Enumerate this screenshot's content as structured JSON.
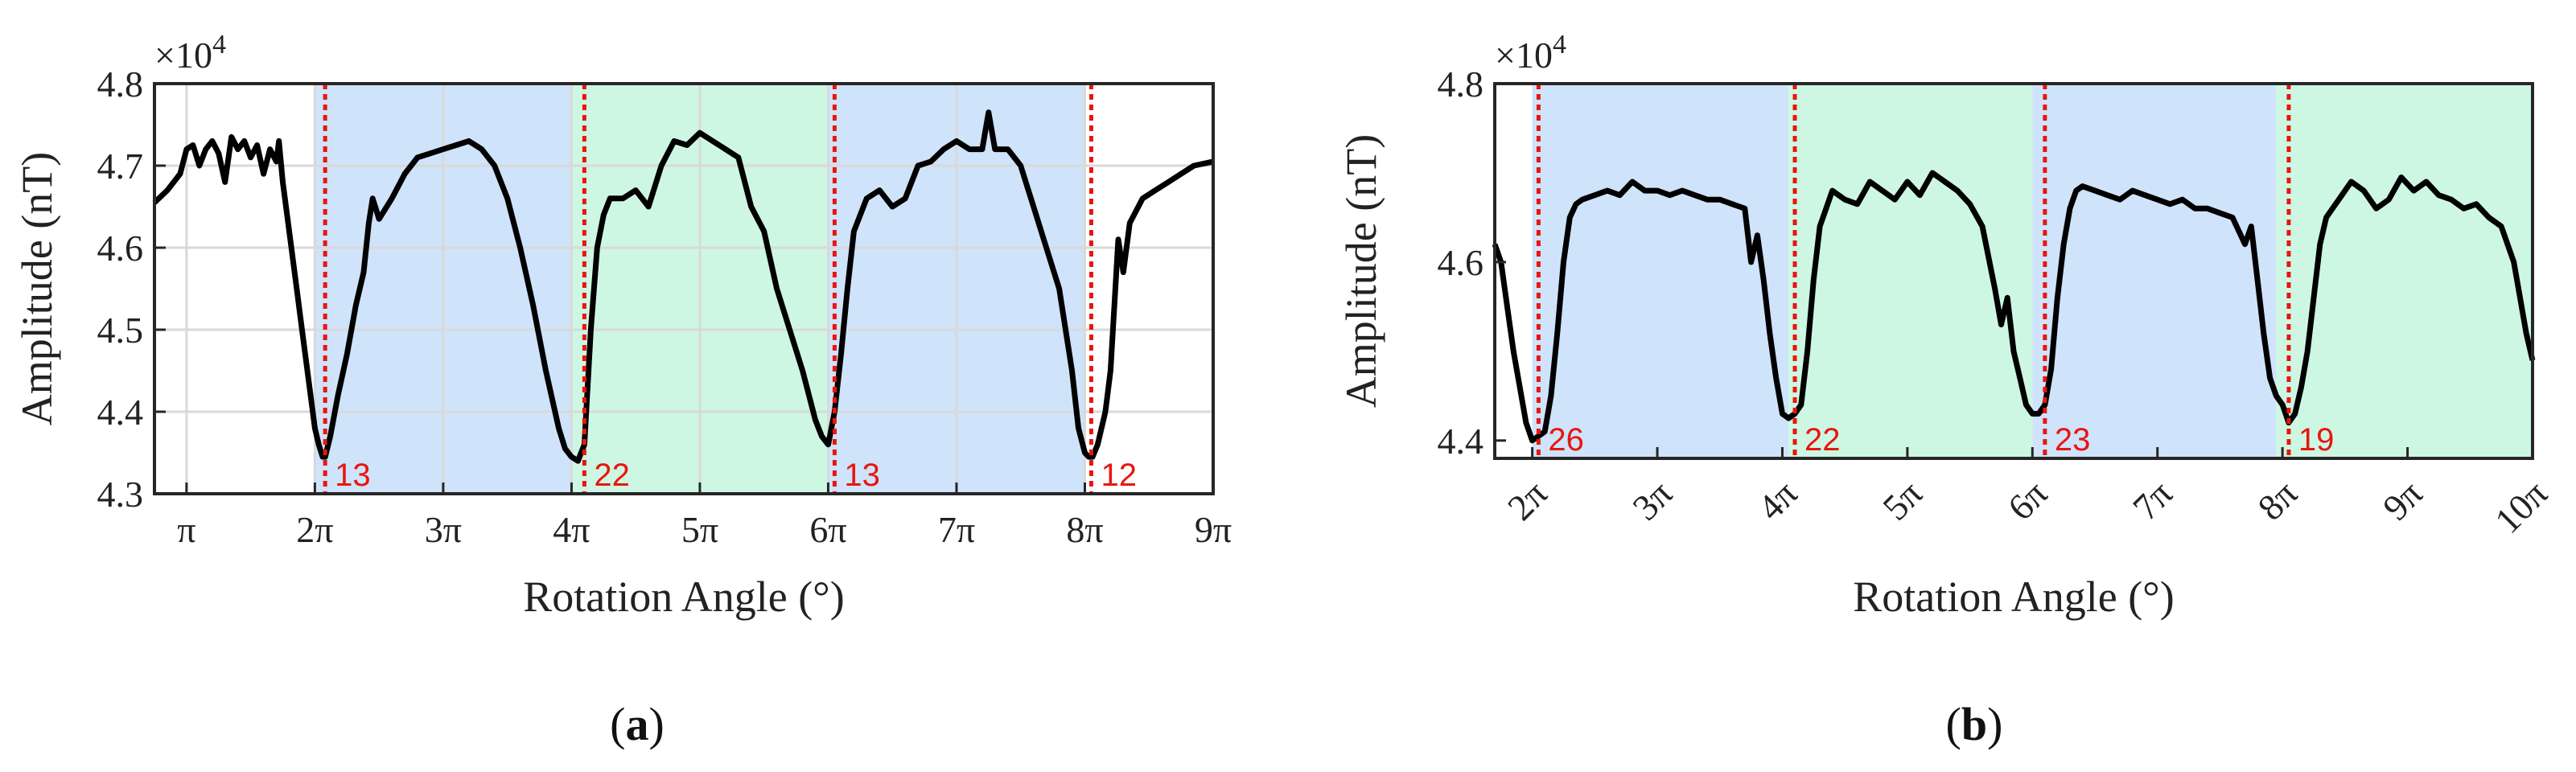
{
  "colors": {
    "blue_band": "#cfe3fb",
    "green_band": "#cdf7e3",
    "line": "#000000",
    "marker": "#e8160e",
    "grid": "#d9d9d9"
  },
  "chart_data": [
    {
      "id": "a",
      "type": "line",
      "panel_label": "a",
      "xlabel": "Rotation Angle (°)",
      "ylabel": "Amplitude (nT)",
      "exponent_label": "×10",
      "exponent_power": "4",
      "x_unit": "pi",
      "xlim": [
        0.75,
        9.0
      ],
      "ylim": [
        4.3,
        4.8
      ],
      "xticks": [
        1,
        2,
        3,
        4,
        5,
        6,
        7,
        8,
        9
      ],
      "xtick_labels": [
        "π",
        "2π",
        "3π",
        "4π",
        "5π",
        "6π",
        "7π",
        "8π",
        "9π"
      ],
      "yticks": [
        4.3,
        4.4,
        4.5,
        4.6,
        4.7,
        4.8
      ],
      "ytick_labels": [
        "4.3",
        "4.4",
        "4.5",
        "4.6",
        "4.7",
        "4.8"
      ],
      "grid": true,
      "rotated_xticks": false,
      "bands": [
        {
          "from": 2.0,
          "to": 4.0,
          "color": "blue"
        },
        {
          "from": 4.0,
          "to": 6.0,
          "color": "green"
        },
        {
          "from": 6.0,
          "to": 8.0,
          "color": "blue"
        }
      ],
      "markers": [
        {
          "x": 2.08,
          "label": "13"
        },
        {
          "x": 4.1,
          "label": "22"
        },
        {
          "x": 6.05,
          "label": "13"
        },
        {
          "x": 8.05,
          "label": "12"
        }
      ],
      "series": [
        {
          "x": [
            0.75,
            0.85,
            0.95,
            1.0,
            1.05,
            1.1,
            1.15,
            1.2,
            1.25,
            1.3,
            1.35,
            1.4,
            1.45,
            1.5,
            1.55,
            1.6,
            1.65,
            1.7,
            1.72,
            1.75,
            1.8,
            1.85,
            1.9,
            1.95,
            2.0,
            2.03,
            2.06,
            2.08,
            2.12,
            2.18,
            2.25,
            2.32,
            2.38,
            2.42,
            2.45,
            2.5,
            2.6,
            2.7,
            2.8,
            2.9,
            3.0,
            3.1,
            3.2,
            3.3,
            3.4,
            3.5,
            3.6,
            3.7,
            3.8,
            3.9,
            3.95,
            4.0,
            4.05,
            4.1,
            4.15,
            4.2,
            4.25,
            4.3,
            4.4,
            4.5,
            4.6,
            4.7,
            4.8,
            4.9,
            5.0,
            5.1,
            5.2,
            5.3,
            5.4,
            5.5,
            5.6,
            5.7,
            5.8,
            5.9,
            5.95,
            6.0,
            6.05,
            6.1,
            6.15,
            6.2,
            6.3,
            6.4,
            6.5,
            6.6,
            6.7,
            6.8,
            6.9,
            7.0,
            7.1,
            7.2,
            7.25,
            7.3,
            7.4,
            7.5,
            7.6,
            7.7,
            7.8,
            7.9,
            7.95,
            8.0,
            8.03,
            8.06,
            8.1,
            8.13,
            8.16,
            8.2,
            8.23,
            8.26,
            8.3,
            8.35,
            8.45,
            8.55,
            8.65,
            8.75,
            8.85,
            9.0
          ],
          "y": [
            4.655,
            4.67,
            4.69,
            4.72,
            4.725,
            4.7,
            4.72,
            4.73,
            4.715,
            4.68,
            4.735,
            4.72,
            4.73,
            4.71,
            4.725,
            4.69,
            4.72,
            4.705,
            4.73,
            4.68,
            4.62,
            4.56,
            4.5,
            4.44,
            4.38,
            4.36,
            4.345,
            4.345,
            4.37,
            4.42,
            4.47,
            4.53,
            4.57,
            4.63,
            4.66,
            4.635,
            4.66,
            4.69,
            4.71,
            4.715,
            4.72,
            4.725,
            4.73,
            4.72,
            4.7,
            4.66,
            4.6,
            4.53,
            4.45,
            4.38,
            4.355,
            4.345,
            4.34,
            4.36,
            4.5,
            4.6,
            4.64,
            4.66,
            4.66,
            4.67,
            4.65,
            4.7,
            4.73,
            4.725,
            4.74,
            4.73,
            4.72,
            4.71,
            4.65,
            4.62,
            4.55,
            4.5,
            4.45,
            4.39,
            4.37,
            4.36,
            4.4,
            4.47,
            4.55,
            4.62,
            4.66,
            4.67,
            4.65,
            4.66,
            4.7,
            4.705,
            4.72,
            4.73,
            4.72,
            4.72,
            4.765,
            4.72,
            4.72,
            4.7,
            4.65,
            4.6,
            4.55,
            4.45,
            4.38,
            4.35,
            4.345,
            4.345,
            4.36,
            4.38,
            4.4,
            4.45,
            4.53,
            4.61,
            4.57,
            4.63,
            4.66,
            4.67,
            4.68,
            4.69,
            4.7,
            4.705
          ]
        }
      ]
    },
    {
      "id": "b",
      "type": "line",
      "panel_label": "b",
      "xlabel": "Rotation Angle (°)",
      "ylabel": "Amplitude (nT)",
      "exponent_label": "×10",
      "exponent_power": "4",
      "x_unit": "pi",
      "xlim": [
        1.7,
        10.0
      ],
      "ylim": [
        4.38,
        4.8
      ],
      "xticks": [
        2,
        3,
        4,
        5,
        6,
        7,
        8,
        9,
        10
      ],
      "xtick_labels": [
        "2π",
        "3π",
        "4π",
        "5π",
        "6π",
        "7π",
        "8π",
        "9π",
        "10π"
      ],
      "yticks": [
        4.4,
        4.6,
        4.8
      ],
      "ytick_labels": [
        "4.4",
        "4.6",
        "4.8"
      ],
      "grid": false,
      "rotated_xticks": true,
      "bands": [
        {
          "from": 2.0,
          "to": 4.05,
          "color": "blue"
        },
        {
          "from": 4.05,
          "to": 6.0,
          "color": "green"
        },
        {
          "from": 6.0,
          "to": 7.95,
          "color": "blue"
        },
        {
          "from": 7.95,
          "to": 10.0,
          "color": "green"
        }
      ],
      "markers": [
        {
          "x": 2.05,
          "label": "26"
        },
        {
          "x": 4.1,
          "label": "22"
        },
        {
          "x": 6.1,
          "label": "23"
        },
        {
          "x": 8.05,
          "label": "19"
        }
      ],
      "series": [
        {
          "x": [
            1.7,
            1.75,
            1.8,
            1.85,
            1.9,
            1.95,
            2.0,
            2.05,
            2.1,
            2.15,
            2.2,
            2.25,
            2.3,
            2.35,
            2.4,
            2.5,
            2.6,
            2.7,
            2.8,
            2.9,
            3.0,
            3.1,
            3.2,
            3.3,
            3.4,
            3.5,
            3.6,
            3.7,
            3.75,
            3.8,
            3.85,
            3.9,
            3.95,
            4.0,
            4.05,
            4.1,
            4.15,
            4.2,
            4.25,
            4.3,
            4.35,
            4.4,
            4.5,
            4.6,
            4.7,
            4.8,
            4.9,
            5.0,
            5.1,
            5.2,
            5.3,
            5.4,
            5.5,
            5.6,
            5.7,
            5.75,
            5.8,
            5.85,
            5.9,
            5.95,
            6.0,
            6.05,
            6.1,
            6.15,
            6.2,
            6.25,
            6.3,
            6.35,
            6.4,
            6.5,
            6.6,
            6.7,
            6.8,
            6.9,
            7.0,
            7.1,
            7.2,
            7.3,
            7.4,
            7.5,
            7.6,
            7.7,
            7.75,
            7.8,
            7.85,
            7.9,
            7.95,
            8.0,
            8.05,
            8.1,
            8.15,
            8.2,
            8.25,
            8.3,
            8.35,
            8.45,
            8.55,
            8.65,
            8.75,
            8.85,
            8.95,
            9.05,
            9.15,
            9.25,
            9.35,
            9.45,
            9.55,
            9.65,
            9.75,
            9.85,
            9.9,
            9.95,
            10.0
          ],
          "y": [
            4.62,
            4.6,
            4.55,
            4.5,
            4.46,
            4.42,
            4.4,
            4.405,
            4.41,
            4.45,
            4.52,
            4.6,
            4.65,
            4.665,
            4.67,
            4.675,
            4.68,
            4.675,
            4.69,
            4.68,
            4.68,
            4.675,
            4.68,
            4.675,
            4.67,
            4.67,
            4.665,
            4.66,
            4.6,
            4.63,
            4.58,
            4.52,
            4.47,
            4.43,
            4.425,
            4.43,
            4.44,
            4.5,
            4.58,
            4.64,
            4.66,
            4.68,
            4.67,
            4.665,
            4.69,
            4.68,
            4.67,
            4.69,
            4.675,
            4.7,
            4.69,
            4.68,
            4.665,
            4.64,
            4.57,
            4.53,
            4.56,
            4.5,
            4.47,
            4.44,
            4.43,
            4.43,
            4.44,
            4.48,
            4.56,
            4.62,
            4.66,
            4.68,
            4.685,
            4.68,
            4.675,
            4.67,
            4.68,
            4.675,
            4.67,
            4.665,
            4.67,
            4.66,
            4.66,
            4.655,
            4.65,
            4.62,
            4.64,
            4.58,
            4.52,
            4.47,
            4.45,
            4.44,
            4.42,
            4.43,
            4.46,
            4.5,
            4.56,
            4.62,
            4.65,
            4.67,
            4.69,
            4.68,
            4.66,
            4.67,
            4.695,
            4.68,
            4.69,
            4.675,
            4.67,
            4.66,
            4.665,
            4.65,
            4.64,
            4.6,
            4.56,
            4.52,
            4.49
          ]
        }
      ]
    }
  ]
}
